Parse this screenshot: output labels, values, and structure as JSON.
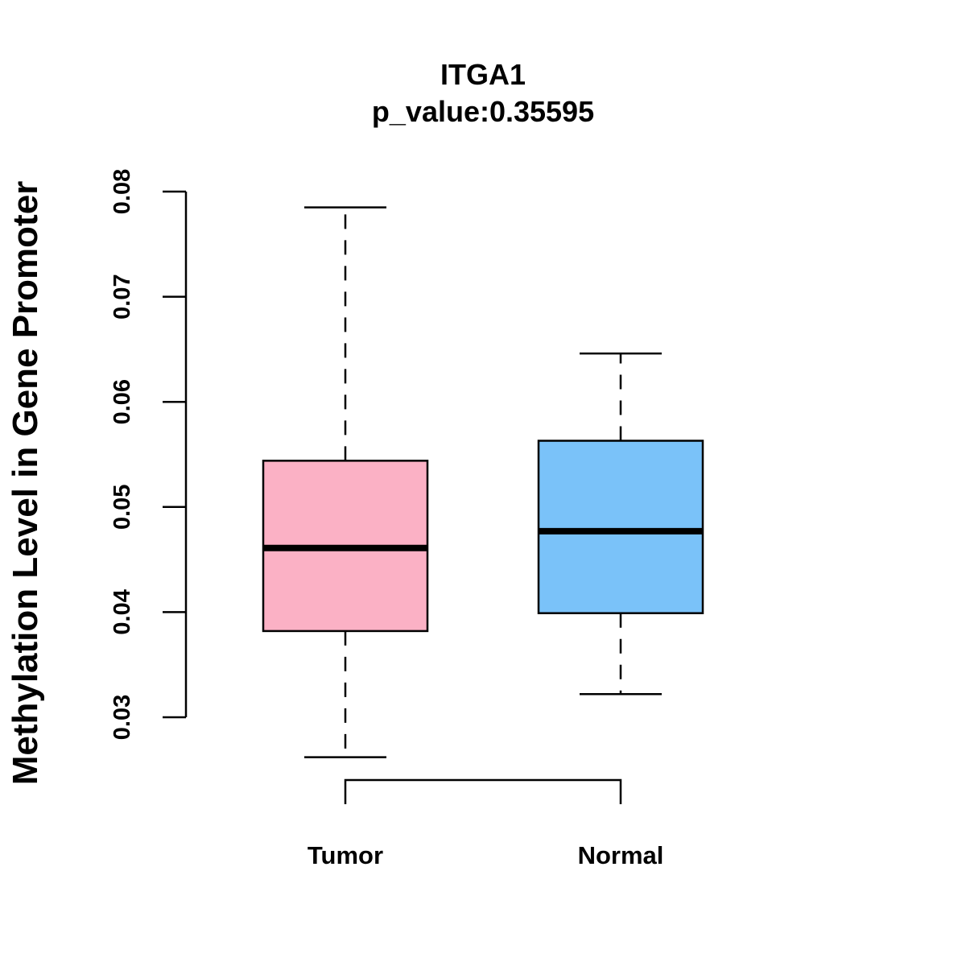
{
  "chart_data": {
    "type": "boxplot",
    "title": "ITGA1",
    "subtitle": "p_value:0.35595",
    "xlabel": "",
    "ylabel": "Methylation Level in Gene Promoter",
    "ylim": [
      0.03,
      0.08
    ],
    "yticks": [
      0.03,
      0.04,
      0.05,
      0.06,
      0.07,
      0.08
    ],
    "ytick_labels": [
      "0.03",
      "0.04",
      "0.05",
      "0.06",
      "0.07",
      "0.08"
    ],
    "grid": false,
    "categories": [
      "Tumor",
      "Normal"
    ],
    "boxes": [
      {
        "name": "Tumor",
        "whisker_low": 0.0262,
        "q1": 0.0382,
        "median": 0.0461,
        "q3": 0.0544,
        "whisker_high": 0.0785,
        "color": "#FBB1C5"
      },
      {
        "name": "Normal",
        "whisker_low": 0.0322,
        "q1": 0.0399,
        "median": 0.0477,
        "q3": 0.0563,
        "whisker_high": 0.0646,
        "color": "#7AC2F9"
      }
    ],
    "comparison_bracket": {
      "between": [
        "Tumor",
        "Normal"
      ]
    }
  }
}
